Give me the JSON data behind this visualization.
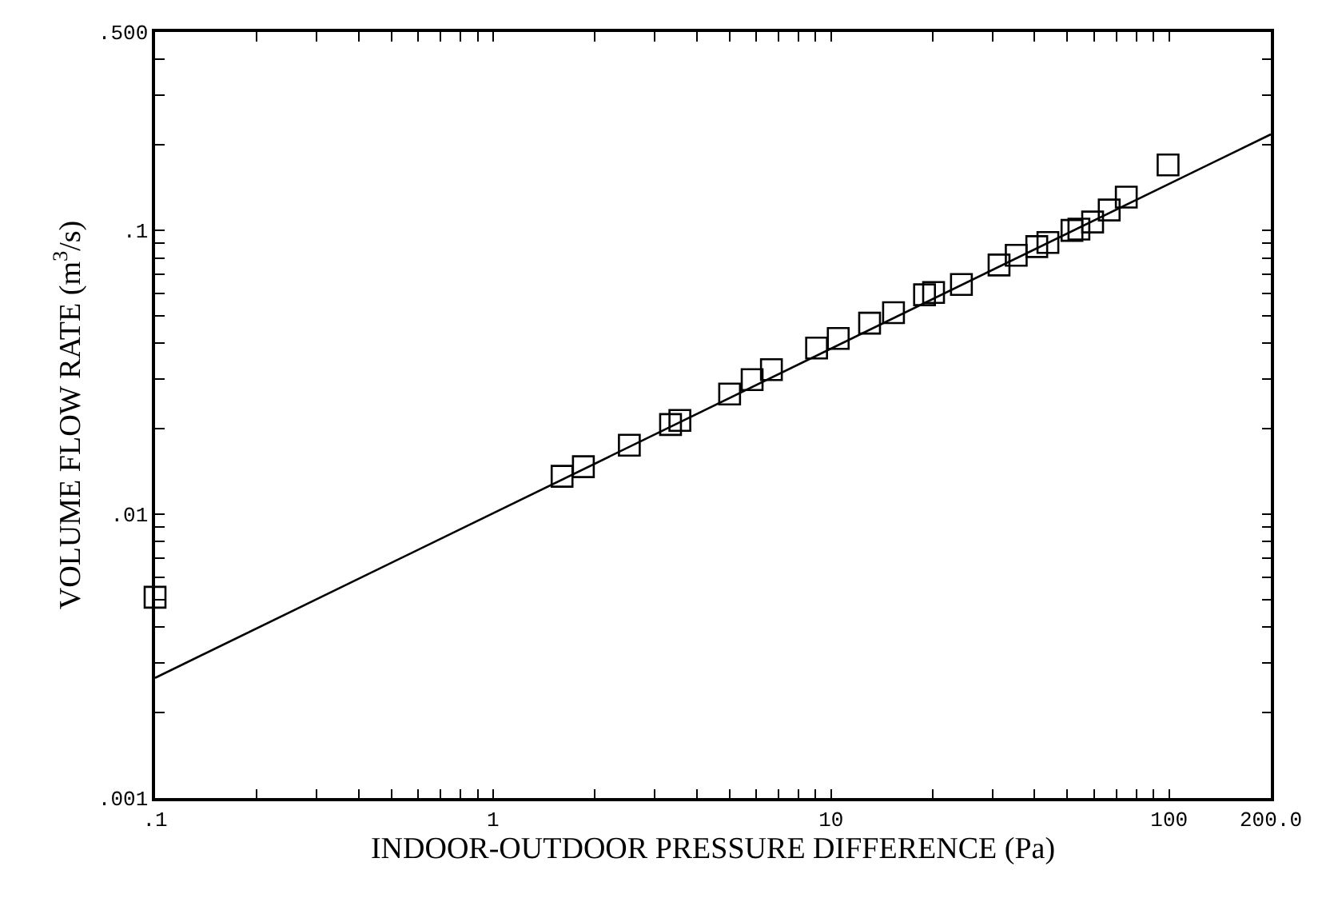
{
  "chart_data": {
    "type": "scatter",
    "xlabel": "INDOOR-OUTDOOR PRESSURE DIFFERENCE (Pa)",
    "ylabel": "VOLUME FLOW RATE (m$^{3}$/s)",
    "log": "xy",
    "marker": "square",
    "xlim": [
      0.1,
      200
    ],
    "ylim": [
      0.001,
      0.5
    ],
    "xticks": [
      {
        "value": 0.1,
        "label": ".1"
      },
      {
        "value": 0.2,
        "label": null
      },
      {
        "value": 0.3,
        "label": null
      },
      {
        "value": 0.4,
        "label": null
      },
      {
        "value": 0.5,
        "label": null
      },
      {
        "value": 0.6,
        "label": null
      },
      {
        "value": 0.7,
        "label": null
      },
      {
        "value": 0.8,
        "label": null
      },
      {
        "value": 0.9,
        "label": null
      },
      1,
      {
        "value": 2,
        "label": null
      },
      {
        "value": 3,
        "label": null
      },
      {
        "value": 4,
        "label": null
      },
      {
        "value": 5,
        "label": null
      },
      {
        "value": 6,
        "label": null
      },
      {
        "value": 7,
        "label": null
      },
      {
        "value": 8,
        "label": null
      },
      {
        "value": 9,
        "label": null
      },
      10,
      {
        "value": 20,
        "label": null
      },
      {
        "value": 30,
        "label": null
      },
      {
        "value": 40,
        "label": null
      },
      {
        "value": 50,
        "label": null
      },
      {
        "value": 60,
        "label": null
      },
      {
        "value": 70,
        "label": null
      },
      {
        "value": 80,
        "label": null
      },
      {
        "value": 90,
        "label": null
      },
      100,
      {
        "value": 200,
        "label": "200.0"
      }
    ],
    "yticks": [
      {
        "value": 0.001,
        "label": ".001"
      },
      {
        "value": 0.002,
        "label": null
      },
      {
        "value": 0.003,
        "label": null
      },
      {
        "value": 0.004,
        "label": null
      },
      {
        "value": 0.005,
        "label": null
      },
      {
        "value": 0.006,
        "label": null
      },
      {
        "value": 0.007,
        "label": null
      },
      {
        "value": 0.008,
        "label": null
      },
      {
        "value": 0.009,
        "label": null
      },
      {
        "value": 0.01,
        "label": ".01"
      },
      {
        "value": 0.02,
        "label": null
      },
      {
        "value": 0.03,
        "label": null
      },
      {
        "value": 0.04,
        "label": null
      },
      {
        "value": 0.05,
        "label": null
      },
      {
        "value": 0.06,
        "label": null
      },
      {
        "value": 0.07,
        "label": null
      },
      {
        "value": 0.08,
        "label": null
      },
      {
        "value": 0.09,
        "label": null
      },
      {
        "value": 0.1,
        "label": ".1"
      },
      {
        "value": 0.2,
        "label": null
      },
      {
        "value": 0.3,
        "label": null
      },
      {
        "value": 0.4,
        "label": null
      },
      {
        "value": 0.5,
        "label": ".500"
      }
    ],
    "series": [
      {
        "color": "#000000",
        "x": [
          0.1,
          1.6,
          1.85,
          2.53,
          3.35,
          3.57,
          5.01,
          5.84,
          6.66,
          9.06,
          10.5,
          13.0,
          15.3,
          18.9,
          20.1,
          24.3,
          31.4,
          35.3,
          40.6,
          43.8,
          51.6,
          54.1,
          59.4,
          66.5,
          74.7,
          99.3
        ],
        "values": [
          0.0051,
          0.0136,
          0.0147,
          0.0175,
          0.0207,
          0.0214,
          0.0265,
          0.0298,
          0.0323,
          0.0385,
          0.0416,
          0.0471,
          0.0513,
          0.0593,
          0.0604,
          0.0645,
          0.0755,
          0.0817,
          0.0877,
          0.0906,
          0.1,
          0.101,
          0.107,
          0.118,
          0.131,
          0.17
        ]
      },
      {
        "type": "line",
        "color": "#000000",
        "marker": "none",
        "line_style": "solid",
        "x": [
          0.1,
          200
        ],
        "values": [
          0.00265,
          0.218
        ]
      }
    ]
  }
}
